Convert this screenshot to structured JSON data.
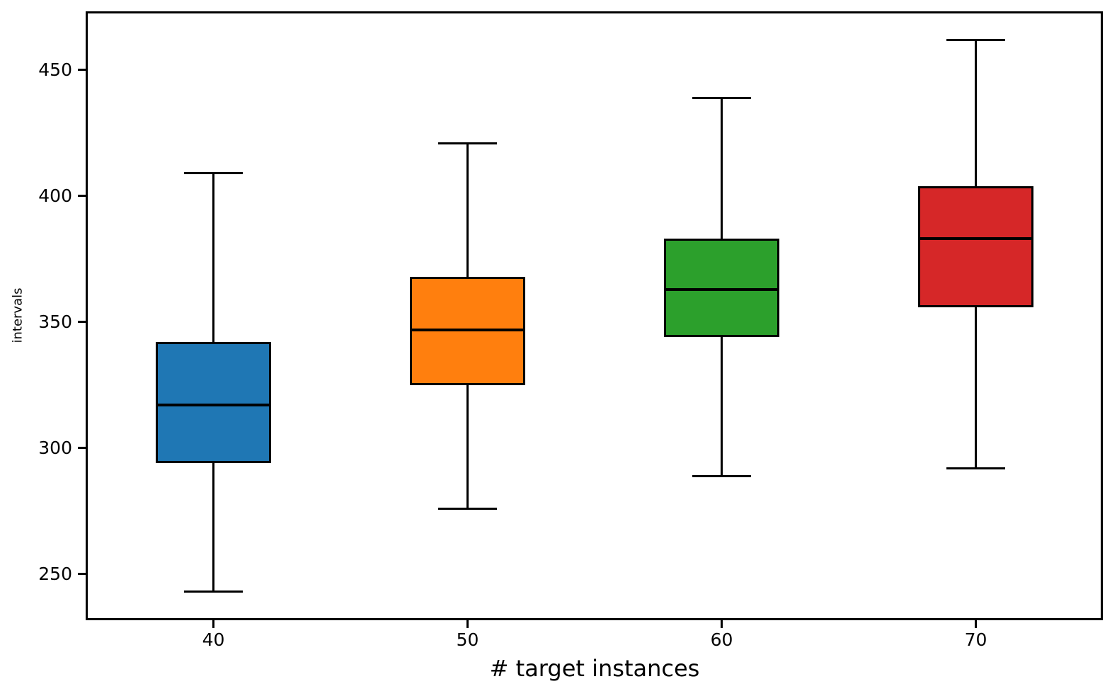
{
  "chart_data": {
    "type": "boxplot",
    "xlabel": "# target instances",
    "ylabel": "intervals",
    "categories": [
      "40",
      "50",
      "60",
      "70"
    ],
    "y_ticks": [
      250,
      300,
      350,
      400,
      450
    ],
    "ylim": [
      232,
      473
    ],
    "grid": false,
    "background": "#ffffff",
    "edge_color": "#000000",
    "median_color": "#000000",
    "series": [
      {
        "category": "40",
        "color": "#1f77b4",
        "whisker_low": 243,
        "q1": 294,
        "median": 317,
        "q3": 342,
        "whisker_high": 409
      },
      {
        "category": "50",
        "color": "#ff7f0e",
        "whisker_low": 276,
        "q1": 325,
        "median": 347,
        "q3": 368,
        "whisker_high": 421
      },
      {
        "category": "60",
        "color": "#2ca02c",
        "whisker_low": 289,
        "q1": 344,
        "median": 363,
        "q3": 383,
        "whisker_high": 439
      },
      {
        "category": "70",
        "color": "#d62728",
        "whisker_low": 292,
        "q1": 356,
        "median": 383,
        "q3": 404,
        "whisker_high": 462
      }
    ]
  }
}
